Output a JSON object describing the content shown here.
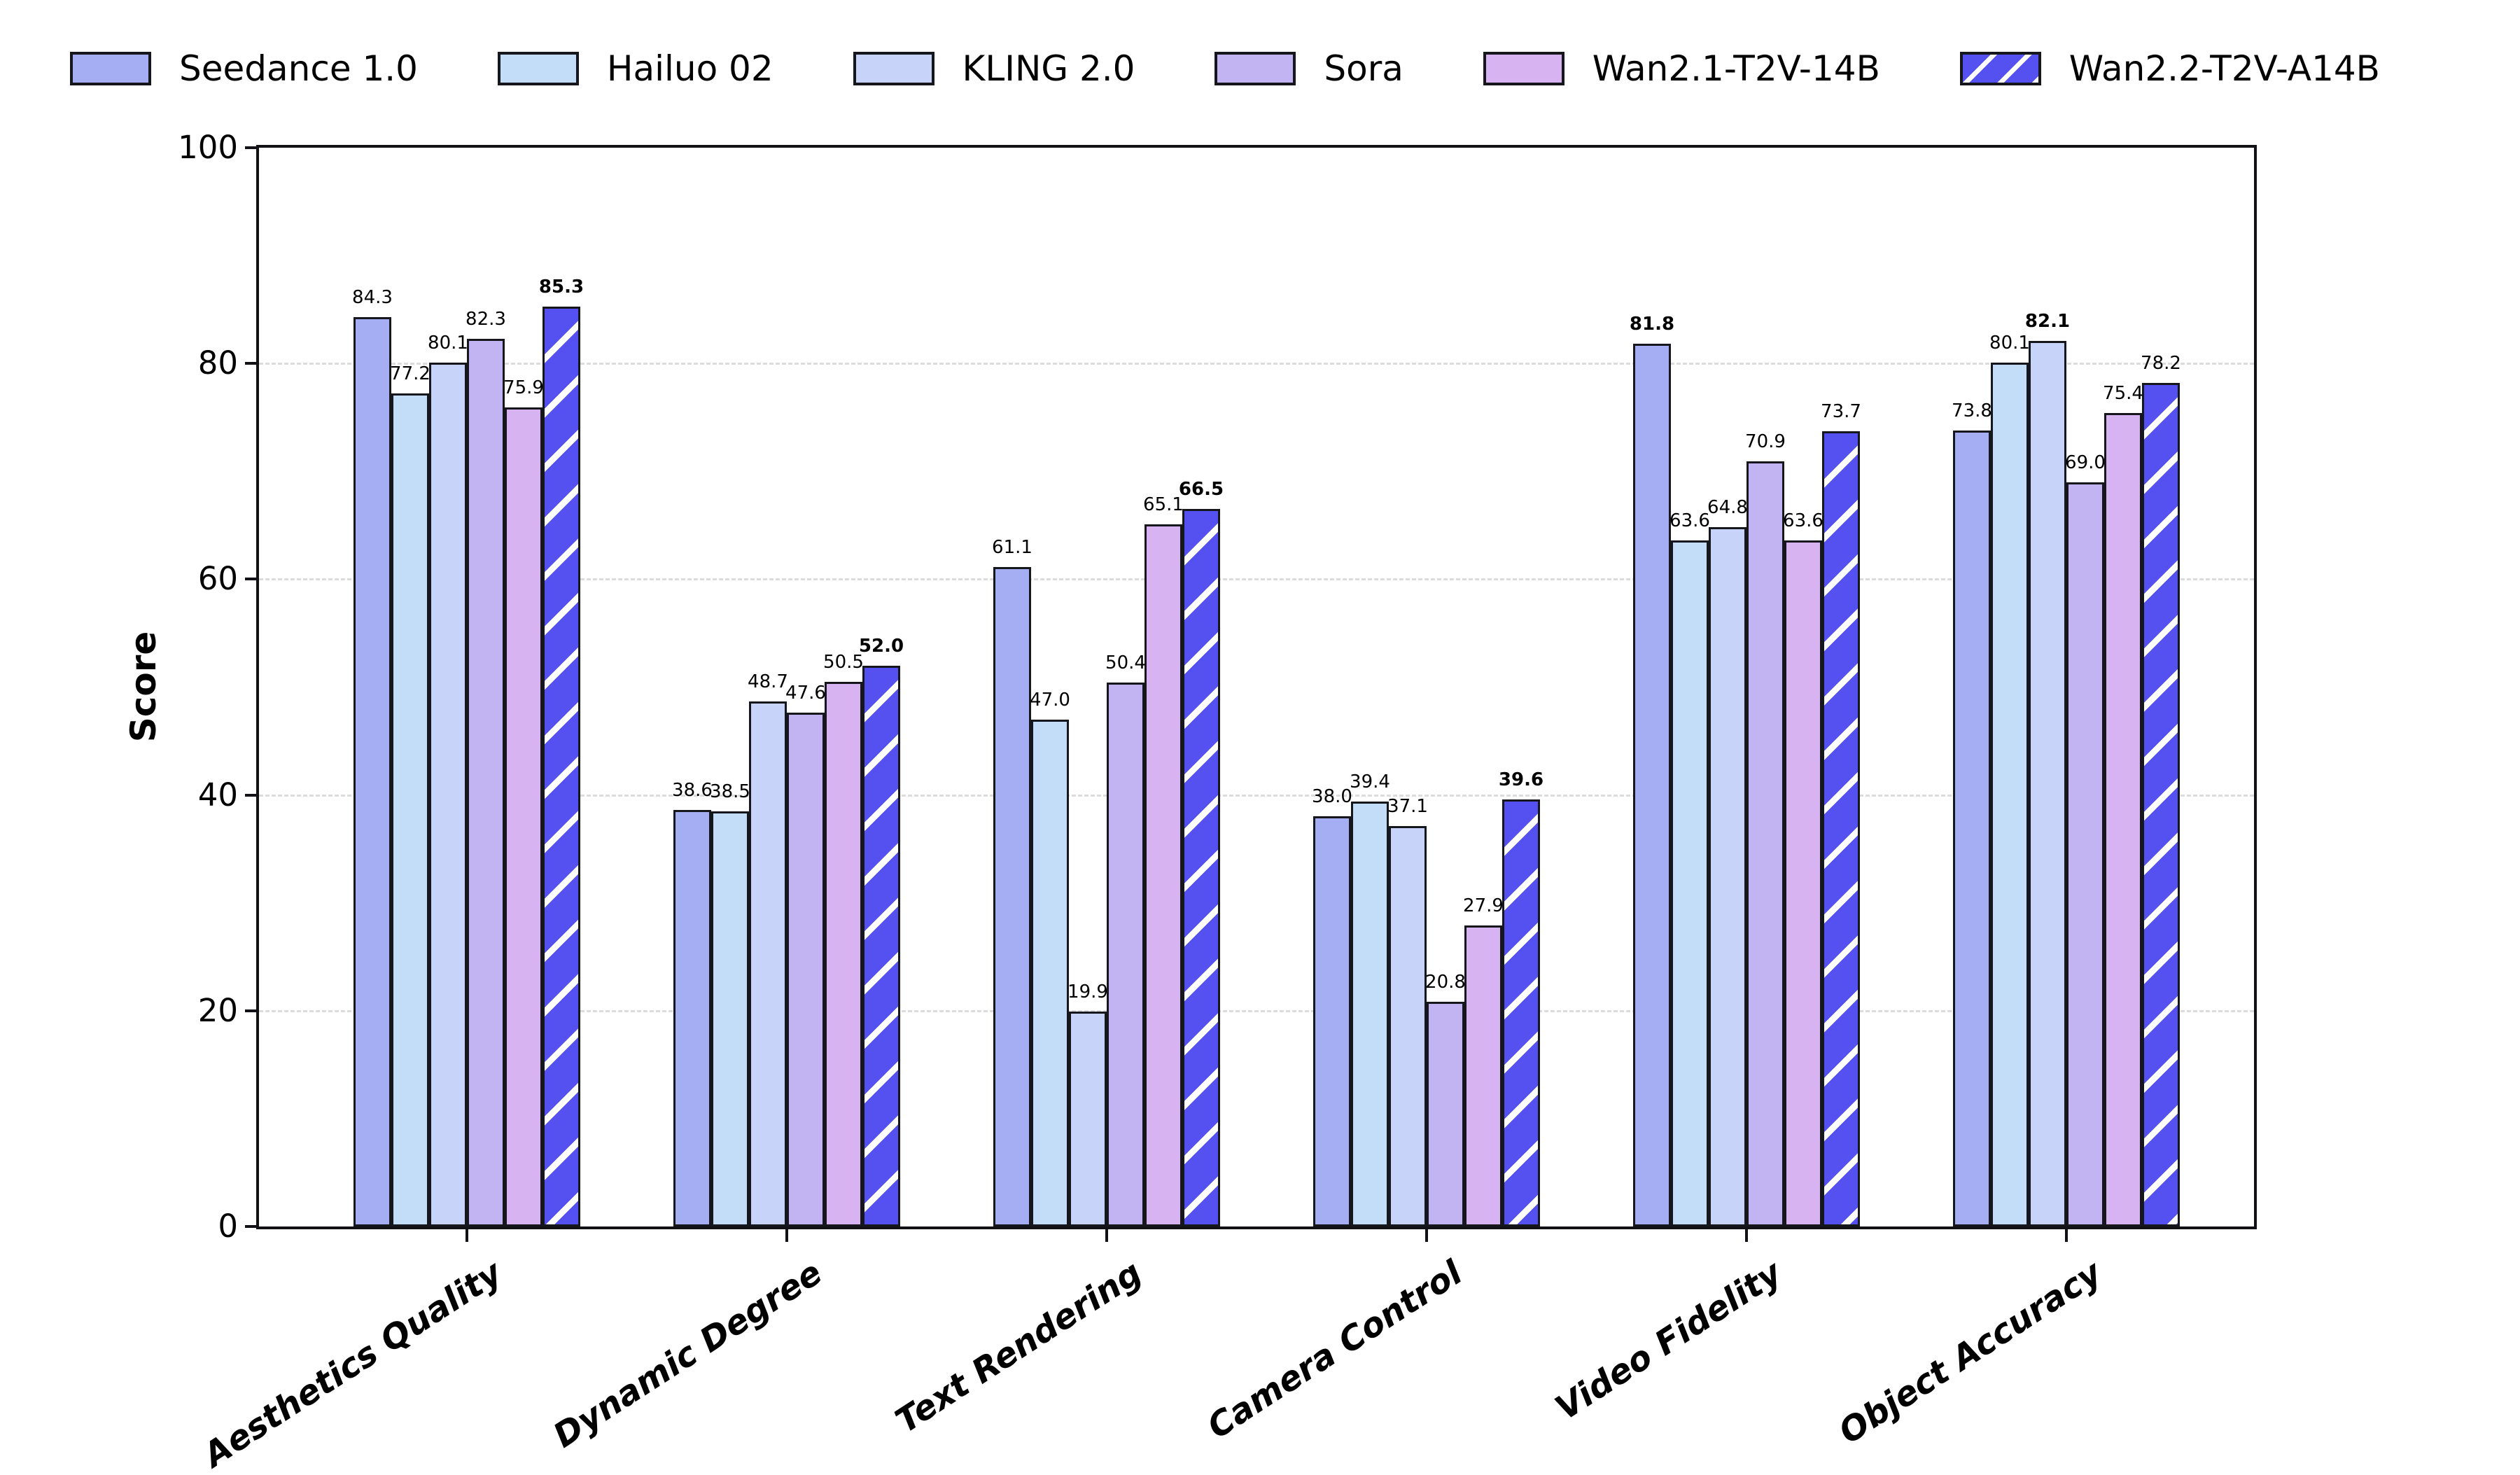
{
  "figure": {
    "background": "#ffffff",
    "edge_color": "#16161d",
    "grid_color": "#dcdcdc"
  },
  "chart_data": {
    "type": "bar",
    "title": "",
    "xlabel": "",
    "ylabel": "Score",
    "ylim": [
      0,
      100
    ],
    "yticks": [
      0,
      20,
      40,
      60,
      80,
      100
    ],
    "grid": "horizontal dashed lines at 20,40,60,80",
    "legend_position": "top horizontal row, no frame",
    "value_label_rule": "every bar labeled with its value; group maximum shown in bold",
    "categories": [
      "Aesthetics Quality",
      "Dynamic Degree",
      "Text Rendering",
      "Camera Control",
      "Video Fidelity",
      "Object Accuracy"
    ],
    "series": [
      {
        "name": "Seedance 1.0",
        "color": "#a6aef3",
        "hatch": false,
        "values": [
          84.3,
          38.6,
          61.1,
          38.0,
          81.8,
          73.8
        ]
      },
      {
        "name": "Hailuo 02",
        "color": "#c3ddf9",
        "hatch": false,
        "values": [
          77.2,
          38.5,
          47.0,
          39.4,
          63.6,
          80.1
        ]
      },
      {
        "name": "KLING 2.0",
        "color": "#c8d3f9",
        "hatch": false,
        "values": [
          80.1,
          48.7,
          19.9,
          37.1,
          64.8,
          82.1
        ]
      },
      {
        "name": "Sora",
        "color": "#c2b3f2",
        "hatch": false,
        "values": [
          82.3,
          47.6,
          50.4,
          20.8,
          70.9,
          69.0
        ]
      },
      {
        "name": "Wan2.1-T2V-14B",
        "color": "#d7b3f2",
        "hatch": false,
        "values": [
          75.9,
          50.5,
          65.1,
          27.9,
          63.6,
          75.4
        ]
      },
      {
        "name": "Wan2.2-T2V-A14B",
        "color": "#5551f0",
        "hatch": true,
        "values": [
          85.3,
          52.0,
          66.5,
          39.6,
          73.7,
          78.2
        ]
      }
    ]
  }
}
